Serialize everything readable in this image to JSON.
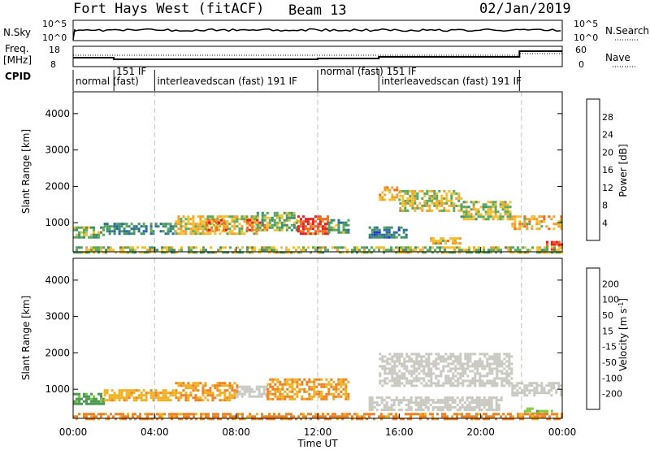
{
  "header": {
    "title": "Fort Hays West (fitACF)",
    "beam": "Beam 13",
    "date": "02/Jan/2019"
  },
  "info_panels": {
    "nsky_label": "N.Sky",
    "nsky_ticks": [
      "10^5",
      "10^0"
    ],
    "nsearch_label": "N.Search",
    "nsearch_ticks": [
      "10^5",
      "10^0"
    ],
    "freq_label": "Freq.",
    "freq_unit": "[MHz]",
    "freq_ticks": [
      "18",
      "8"
    ],
    "nave_label": "Nave",
    "nave_ticks": [
      "60",
      "0"
    ],
    "cpid_label": "CPID"
  },
  "cpid_segments": [
    {
      "start_hour": 0,
      "end_hour": 2.0,
      "label": "normal (fast)"
    },
    {
      "start_hour": 2.0,
      "end_hour": 4.0,
      "label": "151 IF"
    },
    {
      "start_hour": 4.0,
      "end_hour": 12.0,
      "label": "interleavedscan (fast) 191 IF"
    },
    {
      "start_hour": 12.0,
      "end_hour": 15.0,
      "label": "normal (fast) 151 IF"
    },
    {
      "start_hour": 15.0,
      "end_hour": 21.9,
      "label": "interleavedscan (fast) 191 IF"
    },
    {
      "start_hour": 21.9,
      "end_hour": 24.0,
      "label": ""
    }
  ],
  "time_axis": {
    "label": "Time UT",
    "ticks": [
      "00:00",
      "04:00",
      "08:00",
      "12:00",
      "16:00",
      "20:00",
      "00:00"
    ],
    "dashed_lines_hours": [
      4,
      12,
      22
    ]
  },
  "colors": {
    "power_scale": [
      "#2030e0",
      "#2a6a9a",
      "#3f8f6a",
      "#5aa85a",
      "#f0c030",
      "#f0a030",
      "#f06a20",
      "#e02020"
    ],
    "velocity_scale": [
      "#2040b0",
      "#3a6aa0",
      "#4a9a50",
      "#80c840",
      "#c8c8c0",
      "#f0b020",
      "#f08020",
      "#e84020",
      "#e01010"
    ],
    "ground_scatter": "#a0a0a0",
    "grid_dash": "#c0c0c0"
  },
  "chart_data": [
    {
      "type": "heatmap",
      "name": "power",
      "ylabel": "Slant Range [km]",
      "xlabel": "",
      "xlim": [
        0,
        24
      ],
      "ylim": [
        200,
        4600
      ],
      "yticks": [
        "4000",
        "3000",
        "2000",
        "1000"
      ],
      "colorbar": {
        "label": "Power [dB]",
        "ticks": [
          "28",
          "24",
          "20",
          "16",
          "12",
          "8",
          "4"
        ],
        "range": [
          0,
          32
        ]
      },
      "echo_regions": [
        {
          "t_start": 0.0,
          "t_end": 1.5,
          "r_low": 600,
          "r_high": 900,
          "value": 14
        },
        {
          "t_start": 1.5,
          "t_end": 5.0,
          "r_low": 700,
          "r_high": 1000,
          "value": 10
        },
        {
          "t_start": 5.0,
          "t_end": 9.0,
          "r_low": 700,
          "r_high": 1200,
          "value": 18
        },
        {
          "t_start": 6.5,
          "t_end": 7.5,
          "r_low": 800,
          "r_high": 1100,
          "value": 26
        },
        {
          "t_start": 8.5,
          "t_end": 9.5,
          "r_low": 800,
          "r_high": 1100,
          "value": 24
        },
        {
          "t_start": 9.0,
          "t_end": 11.0,
          "r_low": 800,
          "r_high": 1300,
          "value": 14
        },
        {
          "t_start": 11.0,
          "t_end": 12.5,
          "r_low": 700,
          "r_high": 1200,
          "value": 28
        },
        {
          "t_start": 12.5,
          "t_end": 13.5,
          "r_low": 700,
          "r_high": 1100,
          "value": 12
        },
        {
          "t_start": 15.0,
          "t_end": 16.0,
          "r_low": 1600,
          "r_high": 2000,
          "value": 20
        },
        {
          "t_start": 16.0,
          "t_end": 19.0,
          "r_low": 1300,
          "r_high": 1900,
          "value": 18
        },
        {
          "t_start": 19.0,
          "t_end": 21.5,
          "r_low": 1100,
          "r_high": 1600,
          "value": 16
        },
        {
          "t_start": 21.5,
          "t_end": 24.0,
          "r_low": 800,
          "r_high": 1200,
          "value": 20
        },
        {
          "t_start": 23.2,
          "t_end": 24.0,
          "r_low": 250,
          "r_high": 500,
          "value": 30
        },
        {
          "t_start": 17.5,
          "t_end": 19.0,
          "r_low": 400,
          "r_high": 600,
          "value": 20
        },
        {
          "t_start": 14.5,
          "t_end": 16.5,
          "r_low": 600,
          "r_high": 900,
          "value": 8
        },
        {
          "t_start": 0.0,
          "t_end": 24.0,
          "r_low": 200,
          "r_high": 350,
          "value": 16
        }
      ]
    },
    {
      "type": "heatmap",
      "name": "velocity",
      "ylabel": "Slant Range [km]",
      "xlabel": "Time UT",
      "xlim": [
        0,
        24
      ],
      "ylim": [
        200,
        4600
      ],
      "yticks": [
        "4000",
        "3000",
        "2000",
        "1000"
      ],
      "colorbar": {
        "label": "Velocity [m s^-1]",
        "ticks": [
          "200",
          "100",
          "50",
          "15",
          "-15",
          "-50",
          "-100",
          "-200"
        ],
        "range": [
          -250,
          250
        ]
      },
      "echo_regions": [
        {
          "t_start": 0.0,
          "t_end": 1.5,
          "r_low": 600,
          "r_high": 900,
          "value": 60
        },
        {
          "t_start": 1.5,
          "t_end": 5.0,
          "r_low": 700,
          "r_high": 1000,
          "value": -40
        },
        {
          "t_start": 5.0,
          "t_end": 8.0,
          "r_low": 700,
          "r_high": 1200,
          "value": -50
        },
        {
          "t_start": 8.0,
          "t_end": 9.5,
          "r_low": 800,
          "r_high": 1100,
          "value": 0
        },
        {
          "t_start": 9.5,
          "t_end": 13.5,
          "r_low": 700,
          "r_high": 1300,
          "value": -50
        },
        {
          "t_start": 15.0,
          "t_end": 21.5,
          "r_low": 1100,
          "r_high": 2000,
          "value": 0
        },
        {
          "t_start": 21.5,
          "t_end": 24.0,
          "r_low": 800,
          "r_high": 1200,
          "value": 0
        },
        {
          "t_start": 14.5,
          "t_end": 21.0,
          "r_low": 400,
          "r_high": 800,
          "value": 0
        },
        {
          "t_start": 22.0,
          "t_end": 23.5,
          "r_low": 300,
          "r_high": 500,
          "value": 40
        },
        {
          "t_start": 0.0,
          "t_end": 24.0,
          "r_low": 200,
          "r_high": 350,
          "value": -60
        }
      ]
    }
  ]
}
